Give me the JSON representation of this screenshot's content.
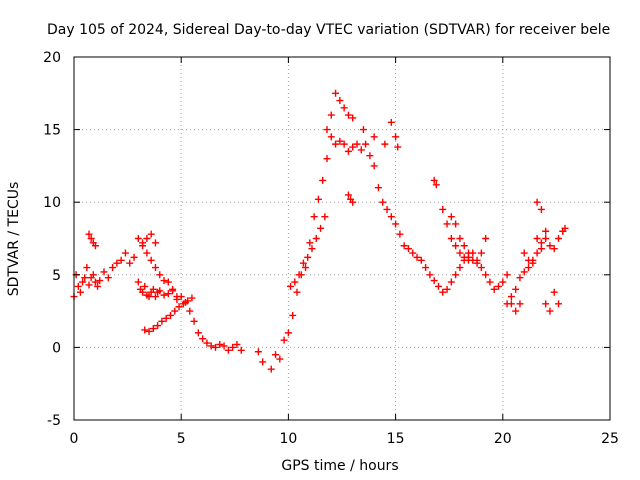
{
  "chart_data": {
    "type": "scatter",
    "title": "Day 105 of 2024, Sidereal Day-to-day VTEC variation (SDTVAR) for receiver bele",
    "xlabel": "GPS time / hours",
    "ylabel": "SDTVAR / TECUs",
    "xlim": [
      0,
      25
    ],
    "ylim": [
      -5,
      20
    ],
    "xticks": [
      0,
      5,
      10,
      15,
      20,
      25
    ],
    "yticks": [
      -5,
      0,
      5,
      10,
      15,
      20
    ],
    "grid": true,
    "marker": "+",
    "color": "#ff0000",
    "series": [
      {
        "name": "SDTVAR",
        "x": [
          0.0,
          0.1,
          0.2,
          0.3,
          0.4,
          0.5,
          0.6,
          0.7,
          0.8,
          0.9,
          1.0,
          1.1,
          1.2,
          1.4,
          1.6,
          1.8,
          2.0,
          2.2,
          2.4,
          2.6,
          2.8,
          3.0,
          3.1,
          3.2,
          3.3,
          3.4,
          3.5,
          3.6,
          3.7,
          3.8,
          3.9,
          4.0,
          4.2,
          4.4,
          4.6,
          4.8,
          5.0,
          5.2,
          5.4,
          5.6,
          5.8,
          6.0,
          6.2,
          6.4,
          6.6,
          6.8,
          7.0,
          7.2,
          7.4,
          7.6,
          7.8,
          8.6,
          8.8,
          9.2,
          9.4,
          9.6,
          9.8,
          10.0,
          10.2,
          10.4,
          10.6,
          10.8,
          11.0,
          11.2,
          11.4,
          11.6,
          11.8,
          12.0,
          12.2,
          12.4,
          12.6,
          12.8,
          13.0,
          13.2,
          13.4,
          13.6,
          13.8,
          14.0,
          14.2,
          14.4,
          14.6,
          14.8,
          15.0,
          15.2,
          15.4,
          15.6,
          15.8,
          16.0,
          16.2,
          16.4,
          16.6,
          16.8,
          17.0,
          17.2,
          17.4,
          17.6,
          17.8,
          18.0,
          18.2,
          18.4,
          18.6,
          18.8,
          19.0,
          19.2,
          19.4,
          19.6,
          19.8,
          20.0,
          20.2,
          20.4,
          20.6,
          20.8,
          21.0,
          21.2,
          21.4,
          21.6,
          21.8,
          22.0,
          22.2,
          22.4,
          22.6,
          22.8,
          0.7,
          0.8,
          0.9,
          1.0,
          3.0,
          3.2,
          3.4,
          3.6,
          3.8,
          3.2,
          3.4,
          3.6,
          3.8,
          4.0,
          4.2,
          4.4,
          4.6,
          4.8,
          3.3,
          3.5,
          3.7,
          3.9,
          4.1,
          4.3,
          4.5,
          4.7,
          4.9,
          5.1,
          5.3,
          5.5,
          11.8,
          12.0,
          12.2,
          12.4,
          12.6,
          12.8,
          13.0,
          13.5,
          14.0,
          14.5,
          14.8,
          15.0,
          15.1,
          12.8,
          12.9,
          13.0,
          16.8,
          16.9,
          17.2,
          17.4,
          17.6,
          17.8,
          18.0,
          18.2,
          18.4,
          17.6,
          17.8,
          18.0,
          18.2,
          18.4,
          18.6,
          18.8,
          19.0,
          19.2,
          20.2,
          20.4,
          20.6,
          20.8,
          21.0,
          21.2,
          21.4,
          21.6,
          21.8,
          22.0,
          22.2,
          22.4,
          22.6,
          22.8,
          22.9,
          21.6,
          21.8,
          22.0,
          10.1,
          10.3,
          10.5,
          10.7,
          10.9,
          11.1,
          11.3,
          11.5,
          11.7
        ],
        "y": [
          3.5,
          5.0,
          4.2,
          3.8,
          4.5,
          4.8,
          5.5,
          4.3,
          4.8,
          5.0,
          4.5,
          4.2,
          4.6,
          5.2,
          4.8,
          5.5,
          5.8,
          6.0,
          6.5,
          5.8,
          6.2,
          4.5,
          4.0,
          3.8,
          4.2,
          3.6,
          3.5,
          3.8,
          4.0,
          3.5,
          3.8,
          3.9,
          3.6,
          3.7,
          3.9,
          3.3,
          3.5,
          3.1,
          2.5,
          1.8,
          1.0,
          0.6,
          0.3,
          0.1,
          0.0,
          0.2,
          0.1,
          -0.2,
          0.0,
          0.2,
          -0.2,
          -0.3,
          -1.0,
          -1.5,
          -0.5,
          -0.8,
          0.5,
          1.0,
          2.2,
          3.8,
          5.0,
          5.5,
          7.2,
          9.0,
          10.2,
          11.5,
          13.0,
          14.5,
          14.0,
          14.2,
          14.0,
          13.5,
          13.8,
          14.0,
          13.6,
          14.0,
          13.2,
          12.5,
          11.0,
          10.0,
          9.5,
          9.0,
          8.5,
          7.8,
          7.0,
          6.8,
          6.5,
          6.2,
          6.0,
          5.5,
          5.0,
          4.6,
          4.2,
          3.8,
          4.0,
          4.5,
          5.0,
          5.5,
          6.0,
          6.2,
          6.5,
          6.0,
          5.5,
          5.0,
          4.5,
          4.0,
          4.2,
          4.5,
          5.0,
          3.0,
          2.5,
          3.0,
          6.5,
          6.0,
          5.8,
          7.5,
          6.8,
          3.0,
          2.5,
          3.8,
          3.0,
          8.0,
          7.8,
          7.5,
          7.2,
          7.0,
          7.5,
          7.2,
          7.5,
          7.8,
          7.2,
          7.0,
          6.5,
          6.0,
          5.5,
          5.0,
          4.6,
          4.5,
          4.0,
          3.5,
          1.2,
          1.1,
          1.3,
          1.5,
          1.8,
          2.0,
          2.2,
          2.5,
          2.8,
          3.0,
          3.2,
          3.4,
          15.0,
          16.0,
          17.5,
          17.0,
          16.5,
          16.0,
          15.8,
          15.0,
          14.5,
          14.0,
          15.5,
          14.5,
          13.8,
          10.5,
          10.2,
          10.0,
          11.5,
          11.2,
          9.5,
          8.5,
          7.5,
          7.0,
          6.5,
          6.2,
          6.0,
          9.0,
          8.5,
          7.5,
          7.0,
          6.5,
          6.0,
          5.8,
          6.5,
          7.5,
          3.0,
          3.5,
          4.0,
          4.8,
          5.2,
          5.5,
          6.0,
          6.5,
          7.2,
          7.5,
          7.0,
          6.8,
          7.5,
          8.0,
          8.2,
          10.0,
          9.5,
          8.0,
          4.2,
          4.5,
          5.0,
          5.8,
          6.2,
          6.8,
          7.5,
          8.2,
          9.0
        ]
      }
    ]
  }
}
